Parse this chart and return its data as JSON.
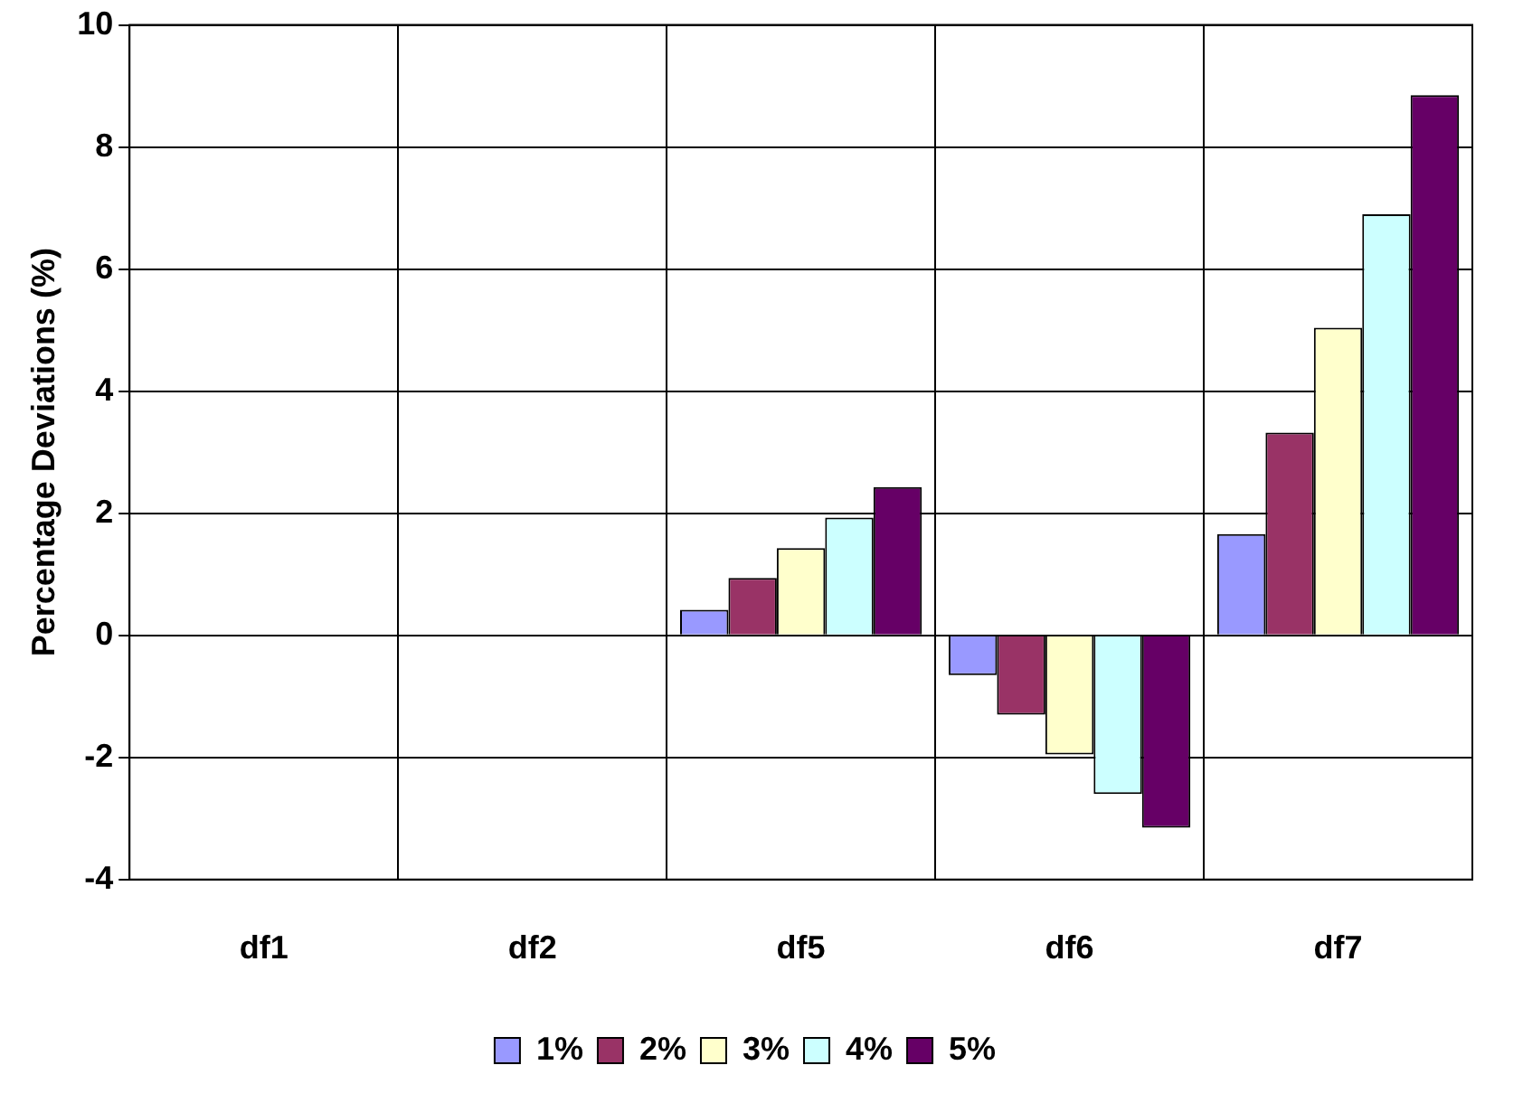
{
  "chart_data": {
    "type": "bar",
    "ylabel": "Percentage Deviations (%)",
    "categories": [
      "df1",
      "df2",
      "df5",
      "df6",
      "df7"
    ],
    "series": [
      {
        "name": "1%",
        "color": "#9999ff",
        "values": [
          0,
          0,
          0.42,
          -0.65,
          1.66
        ]
      },
      {
        "name": "2%",
        "color": "#993366",
        "values": [
          0,
          0,
          0.94,
          -1.3,
          3.32
        ]
      },
      {
        "name": "3%",
        "color": "#ffffcc",
        "values": [
          0,
          0,
          1.43,
          -1.95,
          5.04
        ]
      },
      {
        "name": "4%",
        "color": "#ccffff",
        "values": [
          0,
          0,
          1.93,
          -2.6,
          6.9
        ]
      },
      {
        "name": "5%",
        "color": "#660066",
        "values": [
          0,
          0,
          2.43,
          -3.15,
          8.85
        ]
      }
    ],
    "ylim": [
      -4,
      10
    ],
    "yticks": [
      -4,
      -2,
      0,
      2,
      4,
      6,
      8,
      10
    ],
    "grid": true,
    "legend": "bottom"
  }
}
